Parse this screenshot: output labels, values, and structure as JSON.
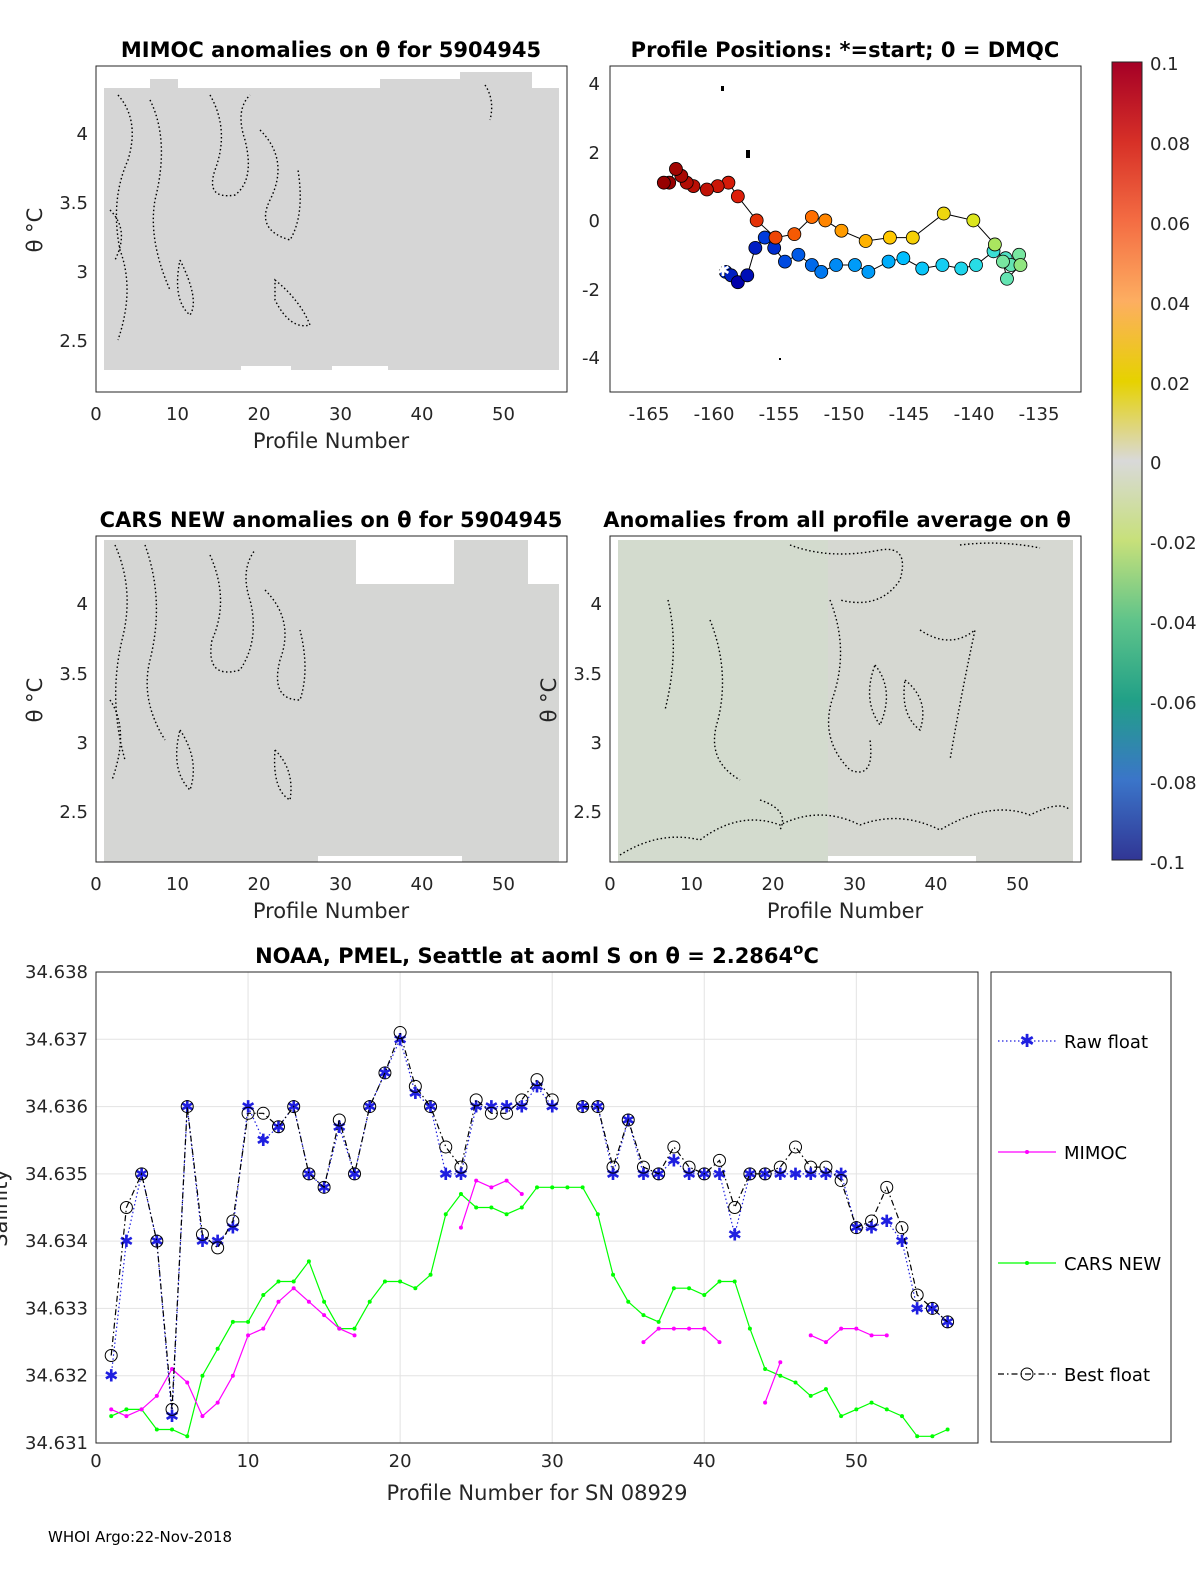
{
  "footer": "WHOI Argo:22-Nov-2018",
  "colorbar": {
    "ticks": [
      "0.1",
      "0.08",
      "0.06",
      "0.04",
      "0.02",
      "0",
      "-0.02",
      "-0.04",
      "-0.06",
      "-0.08",
      "-0.1"
    ]
  },
  "panels": {
    "mimoc": {
      "title": "MIMOC anomalies on θ  for 5904945",
      "ylabel": "θ °C",
      "xlabel": "Profile Number",
      "xticks": [
        "0",
        "10",
        "20",
        "30",
        "40",
        "50"
      ],
      "yticks": [
        "4",
        "3.5",
        "3",
        "2.5"
      ]
    },
    "positions": {
      "title": "Profile Positions: *=start; 0 = DMQC",
      "xticks": [
        "-165",
        "-160",
        "-155",
        "-150",
        "-145",
        "-140",
        "-135"
      ],
      "yticks": [
        "4",
        "2",
        "0",
        "-2",
        "-4"
      ]
    },
    "cars": {
      "title": "CARS NEW anomalies on θ for 5904945",
      "ylabel": "θ °C",
      "xlabel": "Profile Number",
      "xticks": [
        "0",
        "10",
        "20",
        "30",
        "40",
        "50"
      ],
      "yticks": [
        "4",
        "3.5",
        "3",
        "2.5"
      ]
    },
    "allavg": {
      "title": "Anomalies from all profile average on θ",
      "ylabel": "θ °C",
      "xlabel": "Profile Number",
      "xticks": [
        "0",
        "10",
        "20",
        "30",
        "40",
        "50"
      ],
      "yticks": [
        "4",
        "3.5",
        "3",
        "2.5"
      ]
    }
  },
  "chart_data": [
    {
      "type": "scatter",
      "title": "Profile Positions: *=start; 0 = DMQC",
      "xlabel": "",
      "ylabel": "",
      "xlim": [
        -167,
        -132
      ],
      "ylim": [
        -5,
        4.5
      ],
      "colorbar_range": [
        -0.1,
        0.1
      ],
      "points": [
        {
          "lon": -158.4,
          "lat": -1.5,
          "c": -0.085
        },
        {
          "lon": -158.0,
          "lat": -1.6,
          "c": -0.09
        },
        {
          "lon": -157.5,
          "lat": -1.8,
          "c": -0.1
        },
        {
          "lon": -156.8,
          "lat": -1.6,
          "c": -0.095
        },
        {
          "lon": -156.2,
          "lat": -0.8,
          "c": -0.09
        },
        {
          "lon": -155.5,
          "lat": -0.5,
          "c": -0.08
        },
        {
          "lon": -154.8,
          "lat": -0.8,
          "c": -0.085
        },
        {
          "lon": -154.0,
          "lat": -1.2,
          "c": -0.075
        },
        {
          "lon": -153.0,
          "lat": -1.0,
          "c": -0.07
        },
        {
          "lon": -152.0,
          "lat": -1.3,
          "c": -0.065
        },
        {
          "lon": -151.3,
          "lat": -1.5,
          "c": -0.06
        },
        {
          "lon": -150.2,
          "lat": -1.3,
          "c": -0.055
        },
        {
          "lon": -148.8,
          "lat": -1.3,
          "c": -0.05
        },
        {
          "lon": -147.8,
          "lat": -1.5,
          "c": -0.05
        },
        {
          "lon": -146.3,
          "lat": -1.2,
          "c": -0.045
        },
        {
          "lon": -145.2,
          "lat": -1.1,
          "c": -0.04
        },
        {
          "lon": -143.8,
          "lat": -1.4,
          "c": -0.035
        },
        {
          "lon": -142.3,
          "lat": -1.3,
          "c": -0.03
        },
        {
          "lon": -140.9,
          "lat": -1.4,
          "c": -0.025
        },
        {
          "lon": -139.8,
          "lat": -1.3,
          "c": -0.02
        },
        {
          "lon": -138.5,
          "lat": -0.9,
          "c": -0.015
        },
        {
          "lon": -137.6,
          "lat": -1.1,
          "c": -0.01
        },
        {
          "lon": -137.2,
          "lat": -1.3,
          "c": -0.005
        },
        {
          "lon": -136.6,
          "lat": -1.0,
          "c": 0.0
        },
        {
          "lon": -136.5,
          "lat": -1.3,
          "c": 0.005
        },
        {
          "lon": -137.5,
          "lat": -1.7,
          "c": -0.005
        },
        {
          "lon": -137.8,
          "lat": -1.2,
          "c": 0.0
        },
        {
          "lon": -138.4,
          "lat": -0.7,
          "c": 0.01
        },
        {
          "lon": -140.0,
          "lat": 0.0,
          "c": 0.02
        },
        {
          "lon": -142.2,
          "lat": 0.2,
          "c": 0.03
        },
        {
          "lon": -144.5,
          "lat": -0.5,
          "c": 0.035
        },
        {
          "lon": -146.2,
          "lat": -0.5,
          "c": 0.04
        },
        {
          "lon": -148.0,
          "lat": -0.6,
          "c": 0.045
        },
        {
          "lon": -149.8,
          "lat": -0.3,
          "c": 0.05
        },
        {
          "lon": -151.0,
          "lat": 0.0,
          "c": 0.055
        },
        {
          "lon": -152.0,
          "lat": 0.1,
          "c": 0.06
        },
        {
          "lon": -153.3,
          "lat": -0.4,
          "c": 0.065
        },
        {
          "lon": -154.7,
          "lat": -0.5,
          "c": 0.07
        },
        {
          "lon": -156.1,
          "lat": 0.0,
          "c": 0.075
        },
        {
          "lon": -157.5,
          "lat": 0.7,
          "c": 0.08
        },
        {
          "lon": -158.2,
          "lat": 1.1,
          "c": 0.082
        },
        {
          "lon": -159.0,
          "lat": 1.0,
          "c": 0.085
        },
        {
          "lon": -159.8,
          "lat": 0.9,
          "c": 0.088
        },
        {
          "lon": -160.8,
          "lat": 1.0,
          "c": 0.09
        },
        {
          "lon": -161.3,
          "lat": 1.1,
          "c": 0.092
        },
        {
          "lon": -161.7,
          "lat": 1.3,
          "c": 0.095
        },
        {
          "lon": -162.1,
          "lat": 1.5,
          "c": 0.097
        },
        {
          "lon": -162.6,
          "lat": 1.1,
          "c": 0.1
        },
        {
          "lon": -163.0,
          "lat": 1.1,
          "c": 0.1
        }
      ],
      "start": {
        "lon": -158.6,
        "lat": -1.45
      }
    },
    {
      "type": "line",
      "title": "NOAA, PMEL, Seattle at aoml S on θ = 2.2864°C",
      "title_main": "NOAA, PMEL, Seattle at aoml S on θ = 2.2864",
      "title_unit": "C",
      "xlabel": "Profile Number for SN 08929",
      "ylabel": "Salinity",
      "xlim": [
        0,
        58
      ],
      "ylim": [
        34.631,
        34.638
      ],
      "xticks": [
        "0",
        "10",
        "20",
        "30",
        "40",
        "50"
      ],
      "yticks": [
        "34.638",
        "34.637",
        "34.636",
        "34.635",
        "34.634",
        "34.633",
        "34.632",
        "34.631"
      ],
      "legend_position": "outside-right",
      "series": [
        {
          "name": "Raw float",
          "color": "#1f1fe0",
          "style": "dotted-asterisk",
          "x": [
            1,
            2,
            3,
            4,
            5,
            6,
            7,
            8,
            9,
            10,
            11,
            12,
            13,
            14,
            15,
            16,
            17,
            18,
            19,
            20,
            21,
            22,
            23,
            24,
            25,
            26,
            27,
            28,
            29,
            30,
            31,
            32,
            33,
            34,
            35,
            36,
            37,
            38,
            39,
            40,
            41,
            42,
            43,
            44,
            45,
            46,
            47,
            48,
            49,
            50,
            51,
            52,
            53,
            54,
            55,
            56
          ],
          "values": [
            34.632,
            34.634,
            34.635,
            34.634,
            34.6314,
            34.636,
            34.634,
            34.634,
            34.6342,
            34.636,
            34.6355,
            34.6357,
            34.636,
            34.635,
            34.6348,
            34.6357,
            34.635,
            34.636,
            34.6365,
            34.637,
            34.6362,
            34.636,
            34.635,
            34.635,
            34.636,
            34.636,
            34.636,
            34.636,
            34.6363,
            34.636,
            null,
            34.636,
            34.636,
            34.635,
            34.6358,
            34.635,
            34.635,
            34.6352,
            34.635,
            34.635,
            34.635,
            34.6341,
            34.635,
            34.635,
            34.635,
            34.635,
            34.635,
            34.635,
            34.635,
            34.6342,
            34.6342,
            34.6343,
            34.634,
            34.633,
            34.633,
            34.6328
          ]
        },
        {
          "name": "MIMOC",
          "color": "#ff00ff",
          "style": "solid-dot",
          "x": [
            1,
            2,
            3,
            4,
            5,
            6,
            7,
            8,
            9,
            10,
            11,
            12,
            13,
            14,
            15,
            16,
            17,
            18,
            19,
            20,
            21,
            22,
            23,
            24,
            25,
            26,
            27,
            28,
            29,
            30,
            31,
            32,
            33,
            34,
            35,
            36,
            37,
            38,
            39,
            40,
            41,
            42,
            43,
            44,
            45,
            46,
            47,
            48,
            49,
            50,
            51,
            52,
            53,
            54,
            55,
            56
          ],
          "values": [
            34.6315,
            34.6314,
            34.6315,
            34.6317,
            34.6321,
            34.6319,
            34.6314,
            34.6316,
            34.632,
            34.6326,
            34.6327,
            34.6331,
            34.6333,
            34.6331,
            34.6329,
            34.6327,
            34.6326,
            null,
            null,
            null,
            null,
            null,
            null,
            34.6342,
            34.6349,
            34.6348,
            34.6349,
            34.6347,
            null,
            null,
            null,
            null,
            null,
            null,
            null,
            34.6325,
            34.6327,
            34.6327,
            34.6327,
            34.6327,
            34.6325,
            null,
            null,
            34.6316,
            34.6322,
            null,
            34.6326,
            34.6325,
            34.6327,
            34.6327,
            34.6326,
            34.6326,
            null,
            null,
            null,
            null
          ]
        },
        {
          "name": "CARS NEW",
          "color": "#00ff00",
          "style": "solid-dot",
          "x": [
            1,
            2,
            3,
            4,
            5,
            6,
            7,
            8,
            9,
            10,
            11,
            12,
            13,
            14,
            15,
            16,
            17,
            18,
            19,
            20,
            21,
            22,
            23,
            24,
            25,
            26,
            27,
            28,
            29,
            30,
            31,
            32,
            33,
            34,
            35,
            36,
            37,
            38,
            39,
            40,
            41,
            42,
            43,
            44,
            45,
            46,
            47,
            48,
            49,
            50,
            51,
            52,
            53,
            54,
            55,
            56
          ],
          "values": [
            34.6314,
            34.6315,
            34.6315,
            34.6312,
            34.6312,
            34.6311,
            34.632,
            34.6324,
            34.6328,
            34.6328,
            34.6332,
            34.6334,
            34.6334,
            34.6337,
            34.6331,
            34.6327,
            34.6327,
            34.6331,
            34.6334,
            34.6334,
            34.6333,
            34.6335,
            34.6344,
            34.6347,
            34.6345,
            34.6345,
            34.6344,
            34.6345,
            34.6348,
            34.6348,
            34.6348,
            34.6348,
            34.6344,
            34.6335,
            34.6331,
            34.6329,
            34.6328,
            34.6333,
            34.6333,
            34.6332,
            34.6334,
            34.6334,
            34.6327,
            34.6321,
            34.632,
            34.6319,
            34.6317,
            34.6318,
            34.6314,
            34.6315,
            34.6316,
            34.6315,
            34.6314,
            34.6311,
            34.6311,
            34.6312
          ]
        },
        {
          "name": "Best float",
          "color": "#000000",
          "style": "dashdot-circle",
          "x": [
            1,
            2,
            3,
            4,
            5,
            6,
            7,
            8,
            9,
            10,
            11,
            12,
            13,
            14,
            15,
            16,
            17,
            18,
            19,
            20,
            21,
            22,
            23,
            24,
            25,
            26,
            27,
            28,
            29,
            30,
            31,
            32,
            33,
            34,
            35,
            36,
            37,
            38,
            39,
            40,
            41,
            42,
            43,
            44,
            45,
            46,
            47,
            48,
            49,
            50,
            51,
            52,
            53,
            54,
            55,
            56
          ],
          "values": [
            34.6323,
            34.6345,
            34.635,
            34.634,
            34.6315,
            34.636,
            34.6341,
            34.6339,
            34.6343,
            34.6359,
            34.6359,
            34.6357,
            34.636,
            34.635,
            34.6348,
            34.6358,
            34.635,
            34.636,
            34.6365,
            34.6371,
            34.6363,
            34.636,
            34.6354,
            34.6351,
            34.6361,
            34.6359,
            34.6359,
            34.6361,
            34.6364,
            34.6361,
            null,
            34.636,
            34.636,
            34.6351,
            34.6358,
            34.6351,
            34.635,
            34.6354,
            34.6351,
            34.635,
            34.6352,
            34.6345,
            34.635,
            34.635,
            34.6351,
            34.6354,
            34.6351,
            34.6351,
            34.6349,
            34.6342,
            34.6343,
            34.6348,
            34.6342,
            34.6332,
            34.633,
            34.6328
          ]
        }
      ]
    }
  ]
}
